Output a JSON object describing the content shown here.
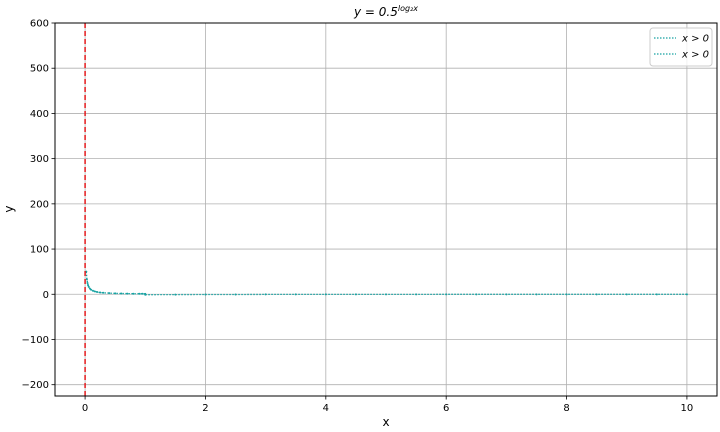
{
  "chart_data": {
    "type": "line",
    "title": {
      "prefix": "y = 0.5",
      "exponent": "log₂x"
    },
    "xlabel": "x",
    "ylabel": "y",
    "xlim": [
      -0.5,
      10.5
    ],
    "ylim": [
      -225,
      600
    ],
    "xticks": [
      0,
      2,
      4,
      6,
      8,
      10
    ],
    "xtick_labels": [
      "0",
      "2",
      "4",
      "6",
      "8",
      "10"
    ],
    "yticks": [
      -200,
      -100,
      0,
      100,
      200,
      300,
      400,
      500,
      600
    ],
    "ytick_labels": [
      "−200",
      "−100",
      "0",
      "100",
      "200",
      "300",
      "400",
      "500",
      "600"
    ],
    "grid": true,
    "legend_position": "top-right",
    "vertical_line": {
      "x": 0,
      "color": "#e41a1c",
      "style": "dashed"
    },
    "series": [
      {
        "name": "x > 0",
        "color": "#17a2a2",
        "style": "dotted",
        "x": [
          0.02,
          0.03,
          0.04,
          0.05,
          0.06,
          0.08,
          0.1,
          0.13,
          0.16,
          0.2,
          0.25,
          0.3,
          0.4,
          0.5,
          0.6,
          0.7,
          0.8,
          0.9,
          0.95,
          1.0
        ],
        "y": [
          50,
          33.3,
          25,
          20,
          16.7,
          12.5,
          10,
          7.7,
          6.3,
          5,
          4,
          3.3,
          2.5,
          2,
          1.7,
          1.4,
          1.25,
          1.1,
          1.05,
          1.0
        ]
      },
      {
        "name": "x > 0",
        "color": "#17a2a2",
        "style": "dotted",
        "x": [
          1.0,
          1.5,
          2,
          2.5,
          3,
          3.5,
          4,
          4.5,
          5,
          5.5,
          6,
          6.5,
          7,
          7.5,
          8,
          8.5,
          9,
          9.5,
          10
        ],
        "y": [
          -1.0,
          -0.67,
          -0.5,
          -0.4,
          -0.33,
          -0.29,
          -0.25,
          -0.22,
          -0.2,
          -0.18,
          -0.17,
          -0.15,
          -0.14,
          -0.13,
          -0.125,
          -0.12,
          -0.11,
          -0.105,
          -0.1
        ]
      }
    ]
  }
}
